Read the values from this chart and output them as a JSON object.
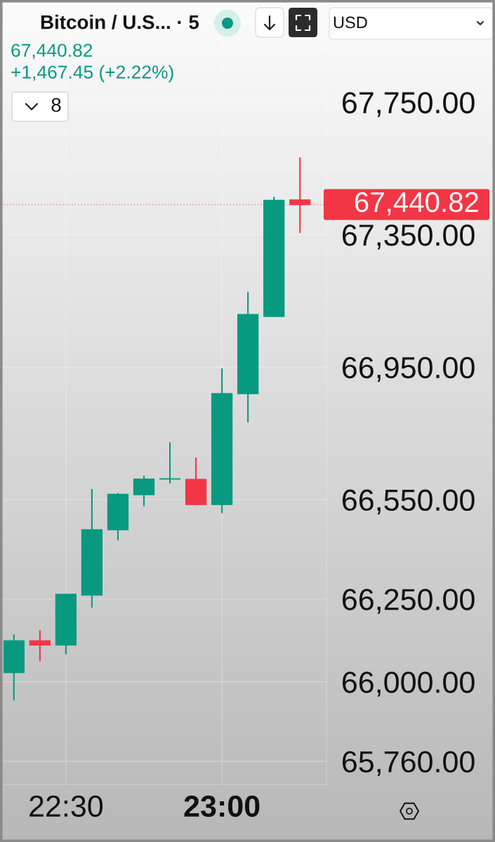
{
  "chart_data": {
    "type": "candlestick",
    "title": "Bitcoin / U.S... · 5",
    "annotations": [
      "67,440.82",
      "+1,467.45 (+2.22%)",
      "8",
      "USD"
    ],
    "x": [
      22.3333,
      22.4167,
      22.5,
      22.5833,
      22.6667,
      22.75,
      22.8333,
      22.9167,
      23,
      23.0833,
      23.1667,
      23.25
    ],
    "ohlc": [
      [
        66028,
        66143,
        65944,
        66124
      ],
      [
        66124,
        66156,
        66062,
        66111
      ],
      [
        66111,
        66266,
        66083,
        66264
      ],
      [
        66262,
        66582,
        66224,
        66459
      ],
      [
        66459,
        66570,
        66427,
        66566
      ],
      [
        66565,
        66622,
        66530,
        66612
      ],
      [
        66612,
        66723,
        66599,
        66613
      ],
      [
        66611,
        66677,
        66533,
        66535
      ],
      [
        66535,
        66946,
        66509,
        66870
      ],
      [
        66870,
        67177,
        66783,
        67109
      ],
      [
        67103,
        67464,
        67101,
        67454
      ],
      [
        67455,
        67583,
        67355,
        67440.82
      ]
    ],
    "colors": [
      "#089981",
      "#f23645",
      "#089981",
      "#089981",
      "#089981",
      "#089981",
      "#089981",
      "#f23645",
      "#089981",
      "#089981",
      "#089981",
      "#f23645"
    ],
    "xlim": [
      22.3,
      23.335
    ],
    "xticks": [
      {
        "value": 22.5,
        "label": "22:30"
      },
      {
        "value": 23,
        "label": "23:00"
      }
    ],
    "ylim": [
      65690,
      68050
    ],
    "yticks": [
      {
        "value": 65760,
        "label": "65,760.00"
      },
      {
        "value": 66000,
        "label": "66,000.00"
      },
      {
        "value": 66250,
        "label": "66,250.00"
      },
      {
        "value": 66550,
        "label": "66,550.00"
      },
      {
        "value": 66950,
        "label": "66,950.00"
      },
      {
        "value": 67350,
        "label": "67,350.00"
      },
      {
        "value": 67750,
        "label": "67,750.00"
      }
    ],
    "grid": true,
    "ref_lines": [
      {
        "axis": "y",
        "value": 67440.82,
        "label": "67,440.82",
        "color": "#f23645",
        "line_style": "dotted"
      }
    ]
  }
}
